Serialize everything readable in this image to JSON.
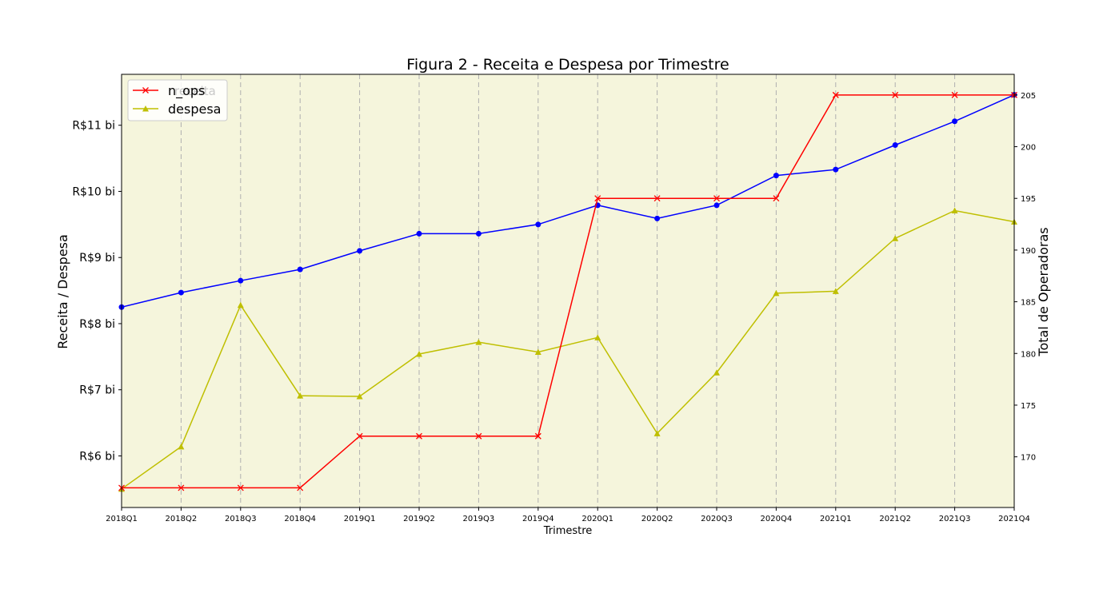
{
  "chart_data": {
    "type": "line",
    "title": "Figura 2 - Receita e Despesa por Trimestre",
    "xlabel": "Trimestre",
    "ylabel_left": "Receita / Despesa",
    "ylabel_right": "Total de Operadoras",
    "categories": [
      "2018Q1",
      "2018Q2",
      "2018Q3",
      "2018Q4",
      "2019Q1",
      "2019Q2",
      "2019Q3",
      "2019Q4",
      "2020Q1",
      "2020Q2",
      "2020Q3",
      "2020Q4",
      "2021Q1",
      "2021Q2",
      "2021Q3",
      "2021Q4"
    ],
    "left_axis": {
      "ticks": [
        6,
        7,
        8,
        9,
        10,
        11
      ],
      "tick_labels": [
        "R$6 bi",
        "R$7 bi",
        "R$8 bi",
        "R$9 bi",
        "R$10 bi",
        "R$11 bi"
      ],
      "range": [
        5.22,
        11.77
      ]
    },
    "right_axis": {
      "ticks": [
        170,
        175,
        180,
        185,
        190,
        195,
        200,
        205
      ],
      "tick_labels": [
        "170",
        "175",
        "180",
        "185",
        "190",
        "195",
        "200",
        "205"
      ],
      "range": [
        165.1,
        207.0
      ]
    },
    "series": [
      {
        "name": "",
        "axis": "left",
        "color": "#0000ff",
        "marker": "circle",
        "values": [
          8.25,
          8.47,
          8.65,
          8.82,
          9.1,
          9.36,
          9.36,
          9.5,
          9.79,
          9.59,
          9.79,
          10.24,
          10.33,
          10.7,
          11.06,
          11.46
        ]
      },
      {
        "name": "n_ops",
        "axis": "right",
        "color": "#ff0000",
        "marker": "x",
        "values": [
          167,
          167,
          167,
          167,
          172,
          172,
          172,
          172,
          195,
          195,
          195,
          195,
          205,
          205,
          205,
          205
        ]
      },
      {
        "name": "despesa",
        "axis": "left",
        "color": "#bfbf00",
        "marker": "triangle",
        "values": [
          5.5,
          6.14,
          8.28,
          6.91,
          6.9,
          7.54,
          7.72,
          7.57,
          7.79,
          6.34,
          7.26,
          8.46,
          8.49,
          9.29,
          9.71,
          9.54
        ]
      }
    ],
    "legend": {
      "placement": "top-left",
      "entries": [
        "n_ops",
        "despesa"
      ],
      "faded_text": "receita"
    },
    "background_color": "#f5f5dc",
    "grid": {
      "x": true,
      "y": false,
      "style": "dashed"
    }
  }
}
